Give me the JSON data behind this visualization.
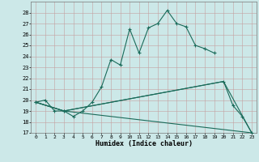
{
  "xlabel": "Humidex (Indice chaleur)",
  "bg_color": "#cce8e8",
  "line_color": "#1a6b5a",
  "xlim": [
    -0.5,
    23.5
  ],
  "ylim": [
    17,
    29
  ],
  "yticks": [
    17,
    18,
    19,
    20,
    21,
    22,
    23,
    24,
    25,
    26,
    27,
    28
  ],
  "xticks": [
    0,
    1,
    2,
    3,
    4,
    5,
    6,
    7,
    8,
    9,
    10,
    11,
    12,
    13,
    14,
    15,
    16,
    17,
    18,
    19,
    20,
    21,
    22,
    23
  ],
  "line1_x": [
    0,
    1,
    2,
    3,
    4,
    5,
    6,
    7,
    8,
    9,
    10,
    11,
    12,
    13,
    14,
    15,
    16,
    17,
    18,
    19
  ],
  "line1_y": [
    19.8,
    20.0,
    19.0,
    19.0,
    18.5,
    19.0,
    19.8,
    21.2,
    23.7,
    23.2,
    26.5,
    24.3,
    26.6,
    27.0,
    28.2,
    27.0,
    26.7,
    25.0,
    24.7,
    24.3
  ],
  "line2_x": [
    0,
    3,
    20,
    21,
    22,
    23
  ],
  "line2_y": [
    19.8,
    19.0,
    21.7,
    19.5,
    18.5,
    17.0
  ],
  "line3_x": [
    0,
    3,
    20,
    23
  ],
  "line3_y": [
    19.8,
    19.0,
    21.7,
    17.0
  ],
  "line4_x": [
    0,
    3,
    23
  ],
  "line4_y": [
    19.8,
    19.0,
    17.0
  ]
}
